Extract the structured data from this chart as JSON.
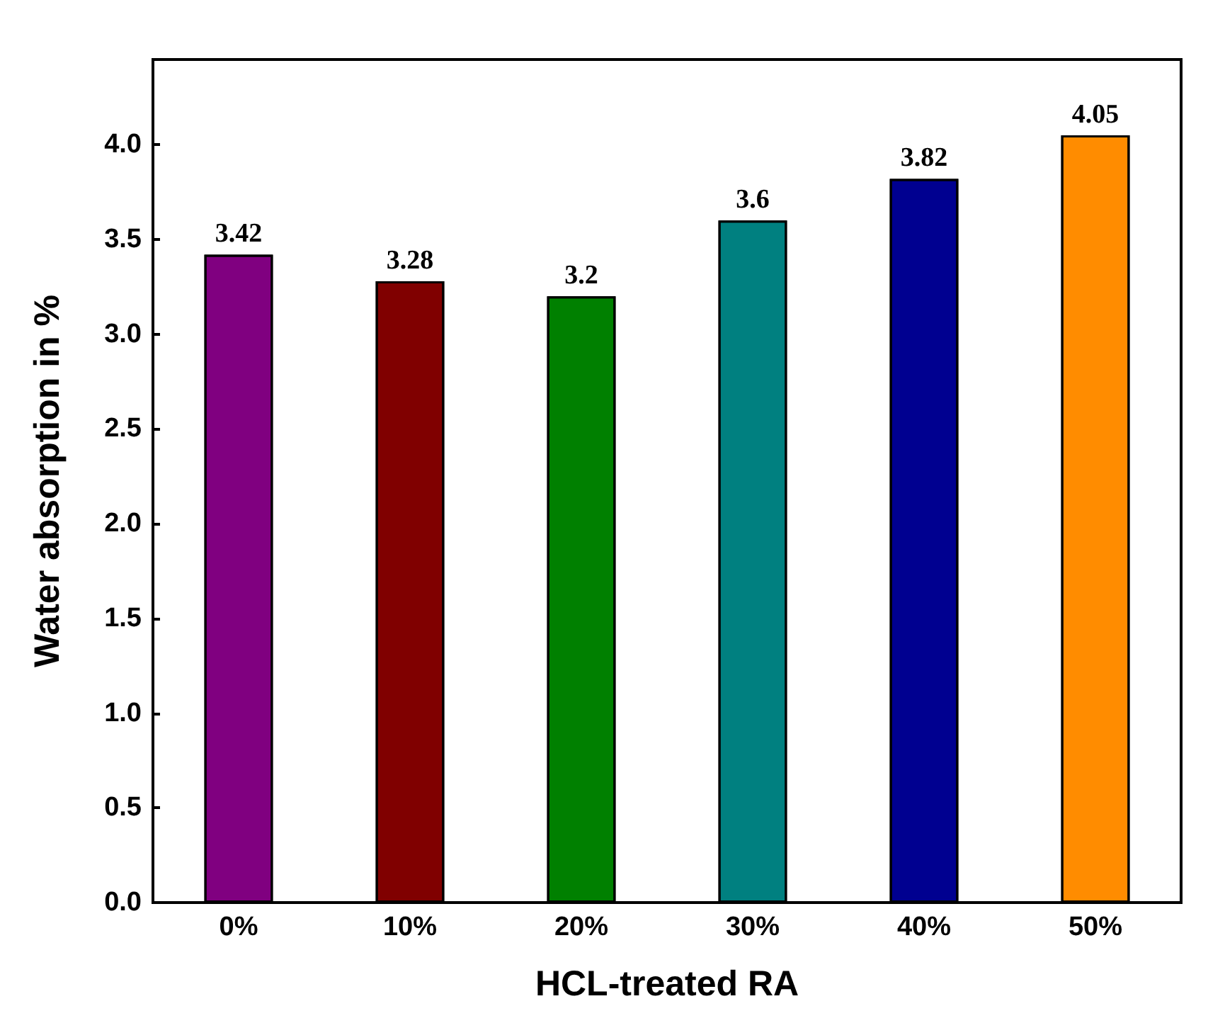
{
  "chart_data": {
    "type": "bar",
    "xlabel": "HCL-treated RA",
    "ylabel": "Water absorption in %",
    "categories": [
      "0%",
      "10%",
      "20%",
      "30%",
      "40%",
      "50%"
    ],
    "values": [
      3.42,
      3.28,
      3.2,
      3.6,
      3.82,
      4.05
    ],
    "value_labels": [
      "3.42",
      "3.28",
      "3.2",
      "3.6",
      "3.82",
      "4.05"
    ],
    "colors": [
      "#800080",
      "#800000",
      "#008000",
      "#008080",
      "#000090",
      "#ff8c00"
    ],
    "ylim": [
      0,
      4.45
    ],
    "yticks": [
      {
        "value": 0,
        "label": "0.0"
      },
      {
        "value": 0.5,
        "label": "0.5"
      },
      {
        "value": 1,
        "label": "1.0"
      },
      {
        "value": 1.5,
        "label": "1.5"
      },
      {
        "value": 2,
        "label": "2.0"
      },
      {
        "value": 2.5,
        "label": "2.5"
      },
      {
        "value": 3,
        "label": "3.0"
      },
      {
        "value": 3.5,
        "label": "3.5"
      },
      {
        "value": 4,
        "label": "4.0"
      }
    ],
    "grid": false
  }
}
